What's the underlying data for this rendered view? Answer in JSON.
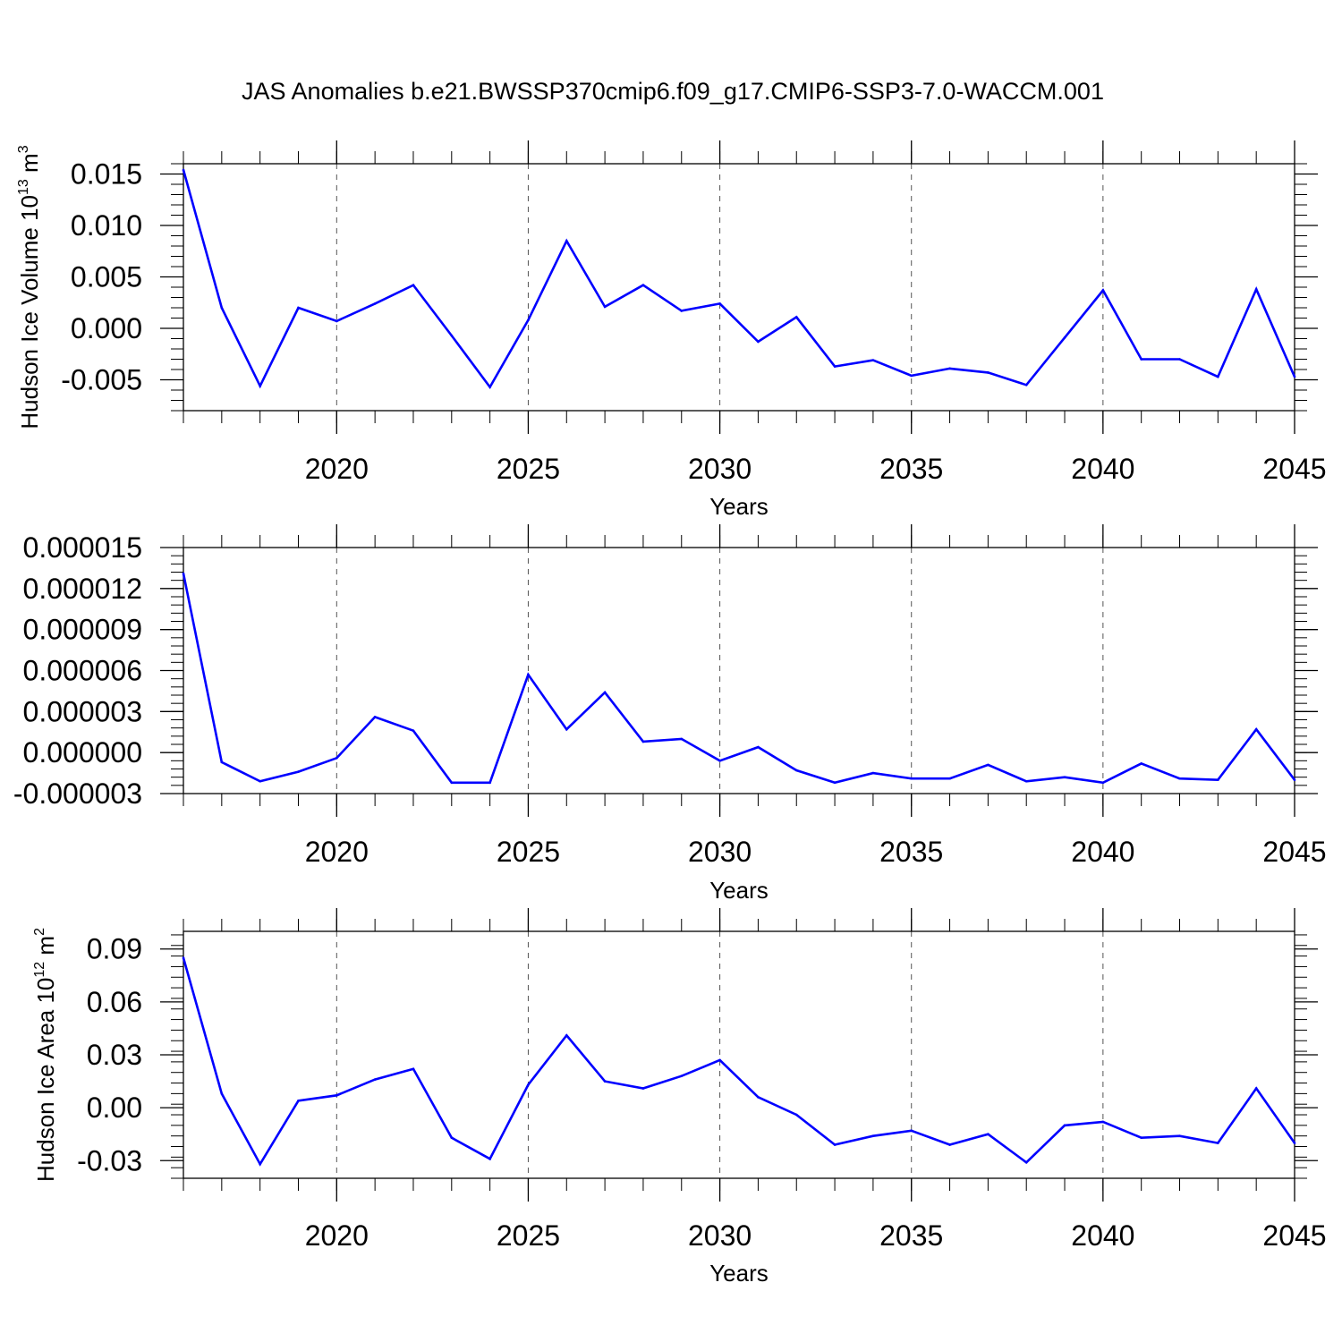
{
  "title": "JAS Anomalies b.e21.BWSSP370cmip6.f09_g17.CMIP6-SSP3-7.0-WACCM.001",
  "chart_data": [
    {
      "type": "line",
      "ylabel_main": "Hudson Ice Volume 10",
      "ylabel_exp": "13",
      "ylabel_unit": " m",
      "ylabel_unit_exp": "3",
      "xlabel": "Years",
      "xlim": [
        2016,
        2045
      ],
      "ylim": [
        -0.008,
        0.016
      ],
      "xticks": [
        2020,
        2025,
        2030,
        2035,
        2040,
        2045
      ],
      "xtick_labels": [
        "2020",
        "2025",
        "2030",
        "2035",
        "2040",
        "2045"
      ],
      "yticks": [
        -0.005,
        0,
        0.005,
        0.01,
        0.015
      ],
      "ytick_labels": [
        "-0.005",
        "0.000",
        "0.005",
        "0.010",
        "0.015"
      ],
      "grid": "vertical dashed at major x ticks",
      "color": "#0000ff",
      "x": [
        2016,
        2017,
        2018,
        2019,
        2020,
        2021,
        2022,
        2023,
        2024,
        2025,
        2026,
        2027,
        2028,
        2029,
        2030,
        2031,
        2032,
        2033,
        2034,
        2035,
        2036,
        2037,
        2038,
        2039,
        2040,
        2041,
        2042,
        2043,
        2044,
        2045
      ],
      "values": [
        0.0154,
        0.002,
        -0.0056,
        0.002,
        0.0007,
        0.0024,
        0.0042,
        -0.0007,
        -0.0057,
        0.0008,
        0.0085,
        0.0021,
        0.0042,
        0.0017,
        0.0024,
        -0.0013,
        0.0011,
        -0.0037,
        -0.0031,
        -0.0046,
        -0.0039,
        -0.0043,
        -0.0055,
        -0.0009,
        0.0037,
        -0.003,
        -0.003,
        -0.0047,
        0.0038,
        -0.0047
      ]
    },
    {
      "type": "line",
      "ylabel_main": "",
      "xlabel": "Years",
      "xlim": [
        2016,
        2045
      ],
      "ylim": [
        -3e-06,
        1.5e-05
      ],
      "xticks": [
        2020,
        2025,
        2030,
        2035,
        2040,
        2045
      ],
      "xtick_labels": [
        "2020",
        "2025",
        "2030",
        "2035",
        "2040",
        "2045"
      ],
      "yticks": [
        -3e-06,
        0,
        3e-06,
        6e-06,
        9e-06,
        1.2e-05,
        1.5e-05
      ],
      "ytick_labels": [
        "-0.000003",
        "0.000000",
        "0.000003",
        "0.000006",
        "0.000009",
        "0.000012",
        "0.000015"
      ],
      "grid": "vertical dashed at major x ticks",
      "color": "#0000ff",
      "x": [
        2016,
        2017,
        2018,
        2019,
        2020,
        2021,
        2022,
        2023,
        2024,
        2025,
        2026,
        2027,
        2028,
        2029,
        2030,
        2031,
        2032,
        2033,
        2034,
        2035,
        2036,
        2037,
        2038,
        2039,
        2040,
        2041,
        2042,
        2043,
        2044,
        2045
      ],
      "values": [
        1.31e-05,
        -7e-07,
        -2.1e-06,
        -1.4e-06,
        -4e-07,
        2.6e-06,
        1.6e-06,
        -2.2e-06,
        -2.2e-06,
        5.7e-06,
        1.7e-06,
        4.4e-06,
        8e-07,
        1e-06,
        -6e-07,
        4e-07,
        -1.3e-06,
        -2.2e-06,
        -1.5e-06,
        -1.9e-06,
        -1.9e-06,
        -9e-07,
        -2.1e-06,
        -1.8e-06,
        -2.2e-06,
        -8e-07,
        -1.9e-06,
        -2e-06,
        1.7e-06,
        -2e-06
      ]
    },
    {
      "type": "line",
      "ylabel_main": "Hudson Ice Area 10",
      "ylabel_exp": "12",
      "ylabel_unit": " m",
      "ylabel_unit_exp": "2",
      "xlabel": "Years",
      "xlim": [
        2016,
        2045
      ],
      "ylim": [
        -0.04,
        0.1
      ],
      "xticks": [
        2020,
        2025,
        2030,
        2035,
        2040,
        2045
      ],
      "xtick_labels": [
        "2020",
        "2025",
        "2030",
        "2035",
        "2040",
        "2045"
      ],
      "yticks": [
        -0.03,
        0,
        0.03,
        0.06,
        0.09
      ],
      "ytick_labels": [
        "-0.03",
        "0.00",
        "0.03",
        "0.06",
        "0.09"
      ],
      "grid": "vertical dashed at major x ticks",
      "color": "#0000ff",
      "x": [
        2016,
        2017,
        2018,
        2019,
        2020,
        2021,
        2022,
        2023,
        2024,
        2025,
        2026,
        2027,
        2028,
        2029,
        2030,
        2031,
        2032,
        2033,
        2034,
        2035,
        2036,
        2037,
        2038,
        2039,
        2040,
        2041,
        2042,
        2043,
        2044,
        2045
      ],
      "values": [
        0.085,
        0.008,
        -0.032,
        0.004,
        0.007,
        0.016,
        0.022,
        -0.017,
        -0.029,
        0.013,
        0.041,
        0.015,
        0.011,
        0.018,
        0.027,
        0.006,
        -0.004,
        -0.021,
        -0.016,
        -0.013,
        -0.021,
        -0.015,
        -0.031,
        -0.01,
        -0.008,
        -0.017,
        -0.016,
        -0.02,
        0.011,
        -0.02
      ]
    }
  ]
}
